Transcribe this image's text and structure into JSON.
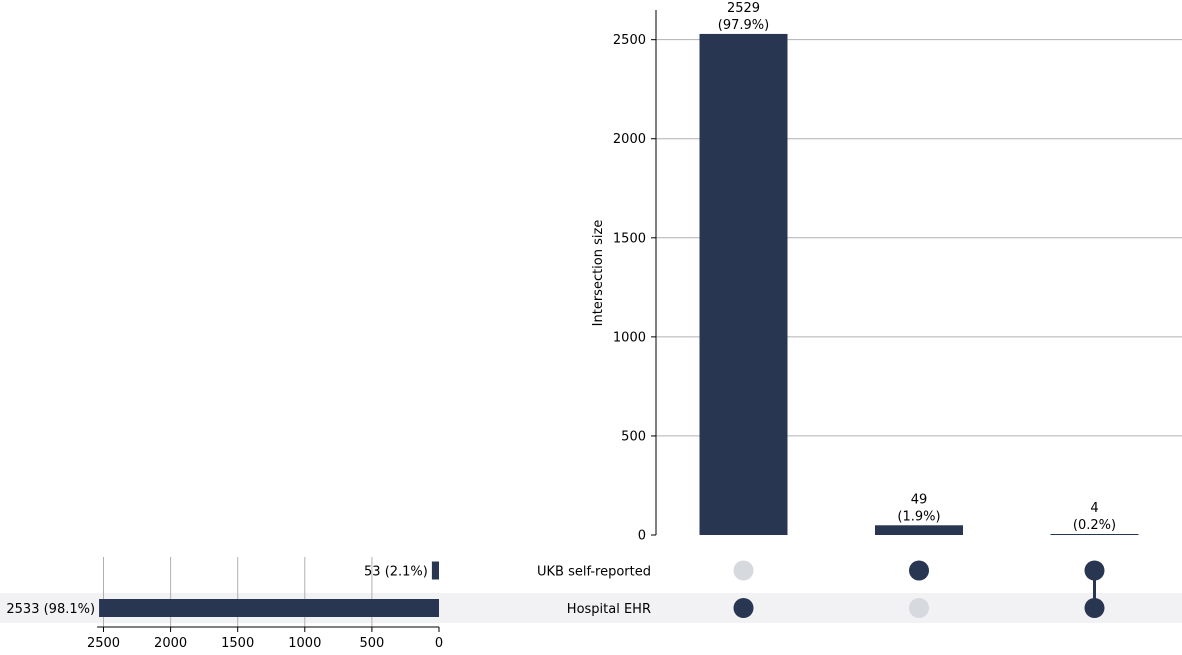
{
  "chart_data": {
    "type": "upset",
    "colors": {
      "bar": "#283652",
      "dot_inactive": "#d6d9de",
      "row_stripe": "#f2f2f4",
      "grid": "#b0b0b0"
    },
    "sets": [
      {
        "name": "UKB self-reported",
        "size": 53,
        "size_label": "53 (2.1%)"
      },
      {
        "name": "Hospital EHR",
        "size": 2533,
        "size_label": "2533 (98.1%)"
      }
    ],
    "intersections": [
      {
        "size": 2529,
        "count_label": "2529",
        "pct_label": "(97.9%)",
        "members": [
          false,
          true
        ]
      },
      {
        "size": 49,
        "count_label": "49",
        "pct_label": "(1.9%)",
        "members": [
          true,
          false
        ]
      },
      {
        "size": 4,
        "count_label": "4",
        "pct_label": "(0.2%)",
        "members": [
          true,
          true
        ]
      }
    ],
    "intersection_axis": {
      "label": "Intersection size",
      "ylim": [
        0,
        2650
      ],
      "ticks": [
        0,
        500,
        1000,
        1500,
        2000,
        2500
      ],
      "tick_labels": [
        "0",
        "500",
        "1000",
        "1500",
        "2000",
        "2500"
      ],
      "grid": true
    },
    "set_size_axis": {
      "label": "",
      "xlim": [
        2533,
        0
      ],
      "ticks": [
        2500,
        2000,
        1500,
        1000,
        500,
        0
      ],
      "tick_labels": [
        "2500",
        "2000",
        "1500",
        "1000",
        "500",
        "0"
      ],
      "grid": true
    }
  }
}
